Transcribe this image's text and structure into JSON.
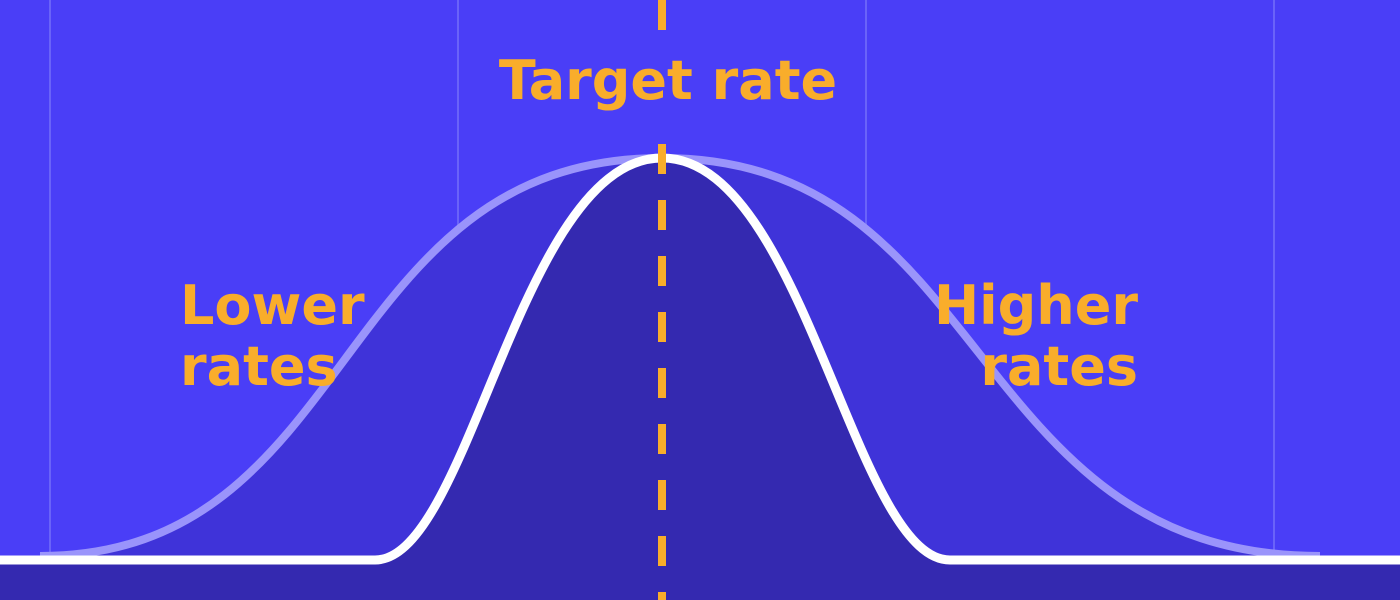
{
  "labels": {
    "target": "Target rate",
    "lower": [
      "Lower",
      "rates"
    ],
    "higher": [
      "Higher",
      "rates"
    ]
  },
  "colors": {
    "background": "#4a3ef7",
    "accent": "#f9ad2b",
    "narrow_fill": "#3429b0",
    "wide_fill": "#3f33d9",
    "curve": "#ffffff",
    "grid": "#6a63f9"
  }
}
